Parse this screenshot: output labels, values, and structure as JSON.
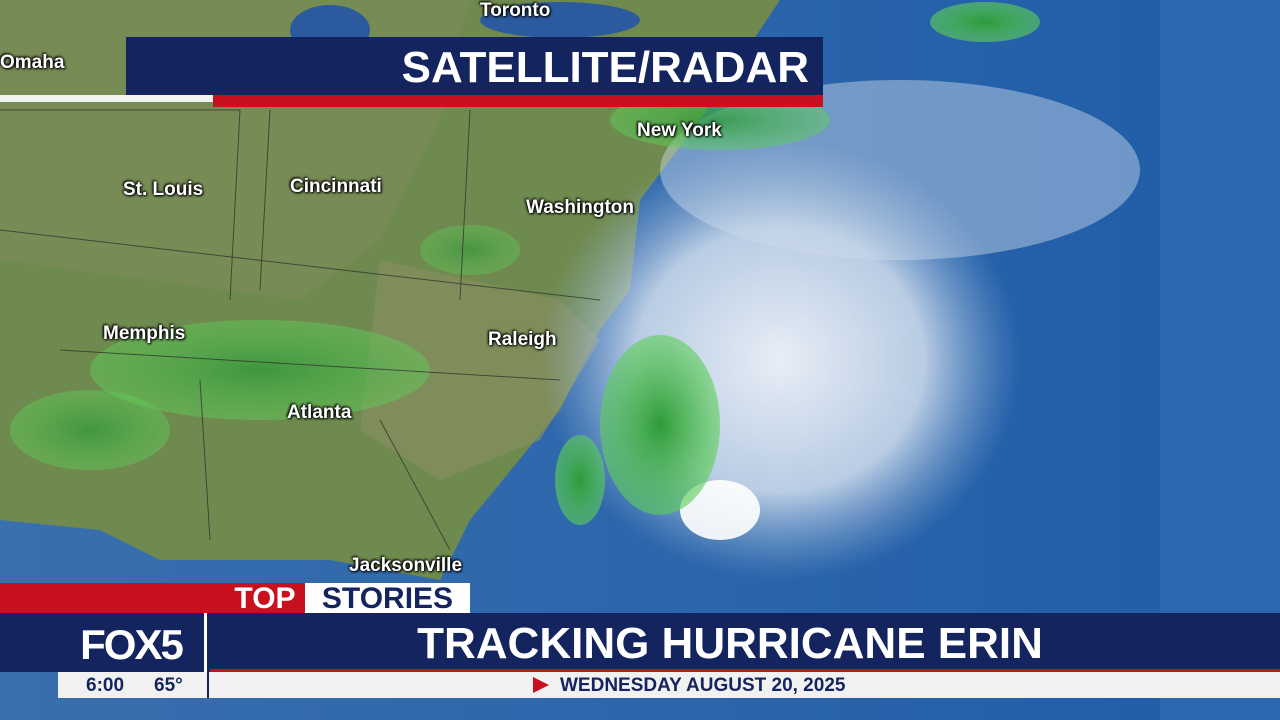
{
  "header": {
    "title": "SATELLITE/RADAR"
  },
  "map": {
    "cities": [
      {
        "label": "Toronto"
      },
      {
        "label": "Omaha"
      },
      {
        "label": "St. Louis"
      },
      {
        "label": "Cincinnati"
      },
      {
        "label": "New York"
      },
      {
        "label": "Washington"
      },
      {
        "label": "Memphis"
      },
      {
        "label": "Raleigh"
      },
      {
        "label": "Atlanta"
      },
      {
        "label": "Jacksonville"
      }
    ]
  },
  "lower_third": {
    "tag_first": "TOP",
    "tag_second": "STORIES",
    "logo": "FOX5",
    "headline": "TRACKING HURRICANE ERIN",
    "time": "6:00",
    "temperature": "65°",
    "date": "WEDNESDAY AUGUST 20, 2025"
  }
}
